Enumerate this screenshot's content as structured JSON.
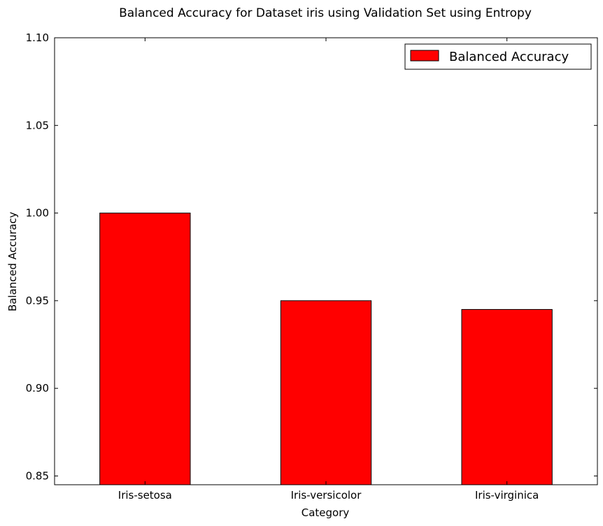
{
  "chart_data": {
    "type": "bar",
    "title": "Balanced Accuracy for Dataset iris using Validation Set using Entropy",
    "xlabel": "Category",
    "ylabel": "Balanced Accuracy",
    "categories": [
      "Iris-setosa",
      "Iris-versicolor",
      "Iris-virginica"
    ],
    "series": [
      {
        "name": "Balanced Accuracy",
        "values": [
          1.0,
          0.95,
          0.945
        ],
        "color": "#ff0000"
      }
    ],
    "ylim": [
      0.845,
      1.1
    ],
    "yticks": [
      0.85,
      0.9,
      0.95,
      1.0,
      1.05,
      1.1
    ],
    "ytick_labels": [
      "0.85",
      "0.90",
      "0.95",
      "1.00",
      "1.05",
      "1.10"
    ],
    "grid": false,
    "legend_position": "top-right"
  }
}
